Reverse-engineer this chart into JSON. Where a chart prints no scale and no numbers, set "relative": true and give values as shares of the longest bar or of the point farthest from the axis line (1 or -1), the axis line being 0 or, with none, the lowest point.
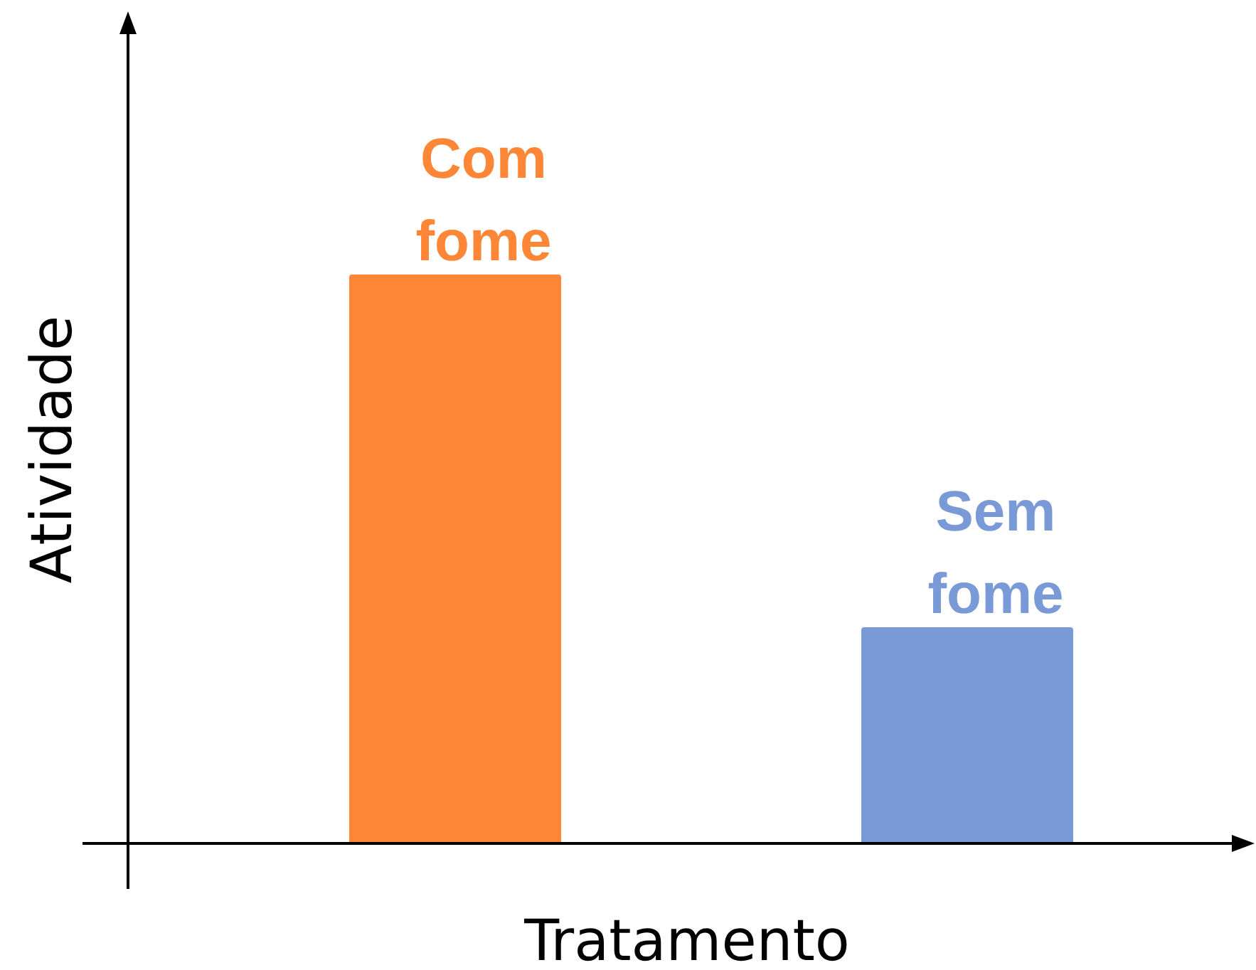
{
  "chart_data": {
    "type": "bar",
    "relative": true,
    "xlabel": "Tratamento",
    "ylabel": "Atividade",
    "categories": [
      "Com fome",
      "Sem fome"
    ],
    "values": [
      1,
      0.38
    ],
    "colors": [
      "#fd8637",
      "#799ad7"
    ]
  }
}
